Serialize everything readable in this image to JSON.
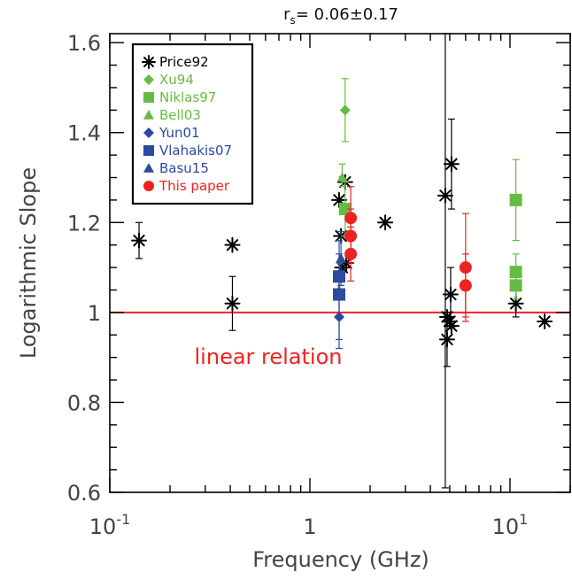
{
  "chart_data": {
    "type": "scatter",
    "title_prefix": "r",
    "title_sub": "s",
    "title_rest": "=  0.06±0.17",
    "xlabel": "Frequency (GHz)",
    "ylabel": "Logarithmic Slope",
    "xscale": "log",
    "xlim": [
      0.1,
      20
    ],
    "ylim": [
      0.6,
      1.62
    ],
    "x_tick_labels": [
      {
        "value": 0.1,
        "base": "10",
        "exp": "-1"
      },
      {
        "value": 1,
        "base": "1",
        "exp": ""
      },
      {
        "value": 10,
        "base": "10",
        "exp": "1"
      }
    ],
    "y_ticks": [
      0.6,
      0.8,
      1.0,
      1.2,
      1.4,
      1.6
    ],
    "y_tick_labels": [
      "0.6",
      "0.8",
      "1",
      "1.2",
      "1.4",
      "1.6"
    ],
    "reference_line": {
      "y": 1.0,
      "color": "#ee2222",
      "label": "linear relation"
    },
    "legend_position": "top-left",
    "series": [
      {
        "name": "Price92",
        "marker": "asterisk",
        "color": "#000000",
        "points": [
          {
            "x": 0.14,
            "y": 1.16,
            "err": [
              1.12,
              1.2
            ]
          },
          {
            "x": 0.41,
            "y": 1.15
          },
          {
            "x": 0.41,
            "y": 1.02,
            "err": [
              0.96,
              1.08
            ]
          },
          {
            "x": 1.4,
            "y": 1.25
          },
          {
            "x": 1.43,
            "y": 1.17
          },
          {
            "x": 1.45,
            "y": 1.1
          },
          {
            "x": 1.5,
            "y": 1.29
          },
          {
            "x": 1.52,
            "y": 1.11
          },
          {
            "x": 2.38,
            "y": 1.2
          },
          {
            "x": 4.75,
            "y": 1.26,
            "err": [
              0.61,
              1.62
            ]
          },
          {
            "x": 4.85,
            "y": 0.99
          },
          {
            "x": 4.85,
            "y": 0.94,
            "err": [
              0.88,
              1.0
            ]
          },
          {
            "x": 5.0,
            "y": 0.98
          },
          {
            "x": 5.05,
            "y": 1.04,
            "err": [
              0.98,
              1.1
            ]
          },
          {
            "x": 5.1,
            "y": 0.97
          },
          {
            "x": 5.1,
            "y": 1.33,
            "err": [
              1.23,
              1.43
            ]
          },
          {
            "x": 10.7,
            "y": 1.02,
            "err": [
              0.99,
              1.05
            ]
          },
          {
            "x": 14.9,
            "y": 0.98
          }
        ]
      },
      {
        "name": "Xu94",
        "marker": "diamond",
        "color": "#66bb44",
        "points": [
          {
            "x": 1.5,
            "y": 1.45,
            "err": [
              1.38,
              1.52
            ]
          }
        ]
      },
      {
        "name": "Niklas97",
        "marker": "square",
        "color": "#66bb44",
        "points": [
          {
            "x": 1.5,
            "y": 1.23,
            "err": [
              1.17,
              1.29
            ]
          },
          {
            "x": 10.7,
            "y": 1.25,
            "err": [
              1.16,
              1.34
            ]
          },
          {
            "x": 10.7,
            "y": 1.09,
            "err": [
              1.05,
              1.13
            ]
          },
          {
            "x": 10.7,
            "y": 1.06,
            "err": [
              1.03,
              1.09
            ]
          }
        ]
      },
      {
        "name": "Bell03",
        "marker": "triangle",
        "color": "#66bb44",
        "points": [
          {
            "x": 1.45,
            "y": 1.3,
            "err": [
              1.28,
              1.33
            ]
          },
          {
            "x": 1.4,
            "y": 1.05,
            "err": [
              0.99,
              1.11
            ]
          }
        ]
      },
      {
        "name": "Yun01",
        "marker": "diamond",
        "color": "#2b4aa0",
        "points": [
          {
            "x": 1.4,
            "y": 0.99,
            "err": [
              0.94,
              1.04
            ]
          }
        ]
      },
      {
        "name": "Vlahakis07",
        "marker": "square",
        "color": "#2b4aa0",
        "points": [
          {
            "x": 1.4,
            "y": 1.08,
            "err": [
              1.03,
              1.13
            ]
          },
          {
            "x": 1.4,
            "y": 1.04,
            "err": [
              0.92,
              1.16
            ]
          }
        ]
      },
      {
        "name": "Basu15",
        "marker": "triangle",
        "color": "#2b4aa0",
        "points": [
          {
            "x": 1.43,
            "y": 1.12,
            "err": [
              1.06,
              1.18
            ]
          }
        ]
      },
      {
        "name": "This paper",
        "marker": "circle",
        "color": "#ee2222",
        "points": [
          {
            "x": 1.6,
            "y": 1.21,
            "err": [
              1.14,
              1.28
            ]
          },
          {
            "x": 1.6,
            "y": 1.17,
            "err": [
              1.11,
              1.23
            ]
          },
          {
            "x": 1.6,
            "y": 1.13,
            "err": [
              1.07,
              1.19
            ]
          },
          {
            "x": 6.0,
            "y": 1.1,
            "err": [
              0.98,
              1.22
            ]
          },
          {
            "x": 6.0,
            "y": 1.06,
            "err": [
              0.99,
              1.13
            ]
          }
        ]
      }
    ]
  }
}
